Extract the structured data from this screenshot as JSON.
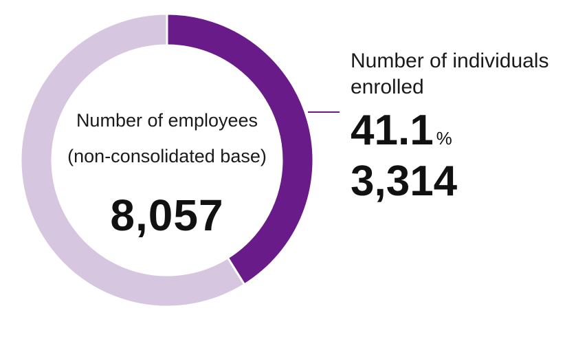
{
  "chart_data": {
    "type": "pie",
    "donut": true,
    "title": "",
    "total_label_line1": "Number of employees",
    "total_label_line2": "(non-consolidated base)",
    "total_value": "8,057",
    "total": 8057,
    "slices": [
      {
        "name": "Number of individuals enrolled",
        "value": 3314,
        "value_label": "3,314",
        "percent": 41.1,
        "percent_label": "41.1",
        "percent_unit": "%",
        "color": "#6a1b8a"
      },
      {
        "name": "",
        "value": 4743,
        "color": "#d6c6df"
      }
    ]
  },
  "colors": {
    "enrolled": "#6a1b8a",
    "remaining": "#d6c6df",
    "leader_line": "#6a1b8a"
  }
}
